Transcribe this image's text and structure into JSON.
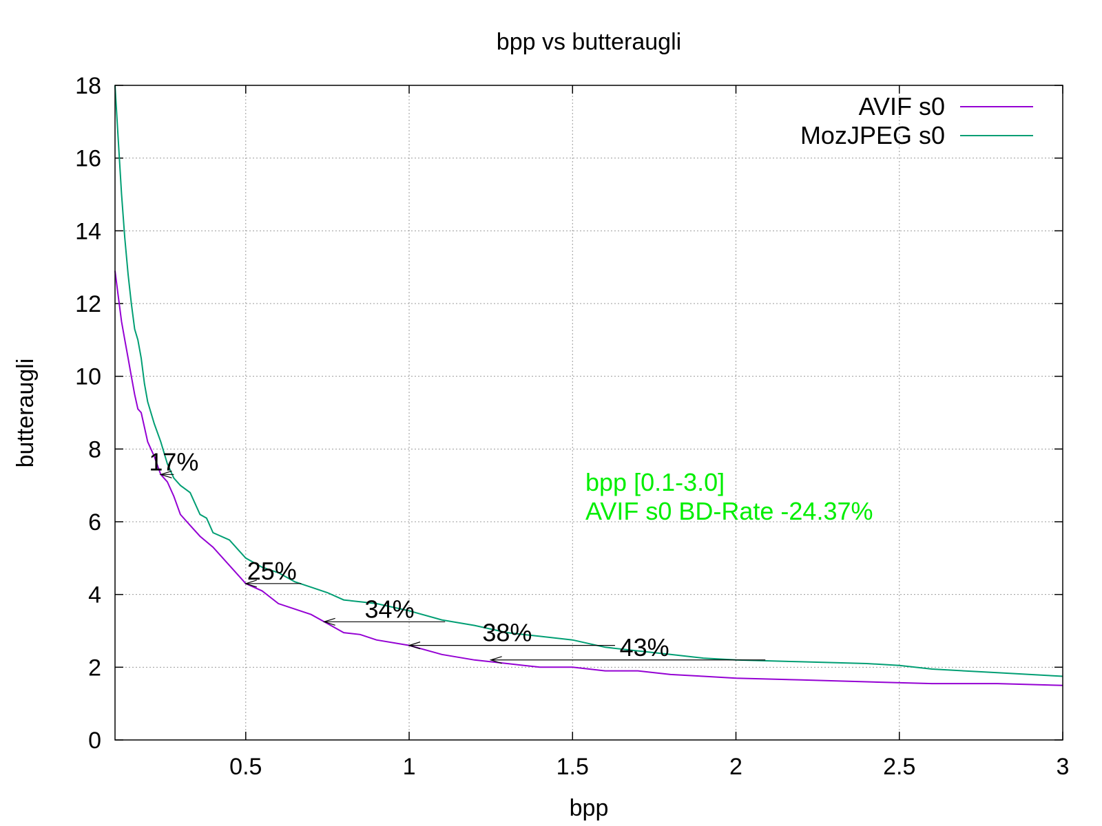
{
  "chart_data": {
    "type": "line",
    "title": "bpp vs butteraugli",
    "xlabel": "bpp",
    "ylabel": "butteraugli",
    "xlim": [
      0.1,
      3.0
    ],
    "ylim": [
      0,
      18
    ],
    "xticks": [
      0.5,
      1,
      1.5,
      2,
      2.5,
      3
    ],
    "xtick_labels": [
      "0.5",
      "1",
      "1.5",
      "2",
      "2.5",
      "3"
    ],
    "yticks": [
      0,
      2,
      4,
      6,
      8,
      10,
      12,
      14,
      16,
      18
    ],
    "ytick_labels": [
      "0",
      "2",
      "4",
      "6",
      "8",
      "10",
      "12",
      "14",
      "16",
      "18"
    ],
    "grid": true,
    "legend_position": "top-right",
    "series": [
      {
        "name": "AVIF s0",
        "color": "#9400d3",
        "points": [
          [
            0.1,
            12.9
          ],
          [
            0.11,
            12.2
          ],
          [
            0.12,
            11.5
          ],
          [
            0.13,
            11.0
          ],
          [
            0.14,
            10.5
          ],
          [
            0.15,
            10.0
          ],
          [
            0.16,
            9.5
          ],
          [
            0.17,
            9.1
          ],
          [
            0.18,
            9.0
          ],
          [
            0.19,
            8.6
          ],
          [
            0.2,
            8.2
          ],
          [
            0.22,
            7.8
          ],
          [
            0.24,
            7.3
          ],
          [
            0.26,
            7.1
          ],
          [
            0.28,
            6.7
          ],
          [
            0.3,
            6.2
          ],
          [
            0.33,
            5.9
          ],
          [
            0.36,
            5.6
          ],
          [
            0.4,
            5.3
          ],
          [
            0.45,
            4.8
          ],
          [
            0.5,
            4.3
          ],
          [
            0.55,
            4.1
          ],
          [
            0.6,
            3.75
          ],
          [
            0.65,
            3.6
          ],
          [
            0.7,
            3.45
          ],
          [
            0.75,
            3.2
          ],
          [
            0.8,
            2.95
          ],
          [
            0.85,
            2.9
          ],
          [
            0.9,
            2.75
          ],
          [
            1.0,
            2.6
          ],
          [
            1.1,
            2.35
          ],
          [
            1.2,
            2.2
          ],
          [
            1.3,
            2.1
          ],
          [
            1.4,
            2.0
          ],
          [
            1.5,
            2.0
          ],
          [
            1.6,
            1.9
          ],
          [
            1.7,
            1.9
          ],
          [
            1.8,
            1.8
          ],
          [
            1.9,
            1.75
          ],
          [
            2.0,
            1.7
          ],
          [
            2.2,
            1.65
          ],
          [
            2.4,
            1.6
          ],
          [
            2.6,
            1.55
          ],
          [
            2.8,
            1.55
          ],
          [
            3.0,
            1.5
          ]
        ]
      },
      {
        "name": "MozJPEG s0",
        "color": "#009e73",
        "points": [
          [
            0.1,
            18.0
          ],
          [
            0.11,
            16.5
          ],
          [
            0.12,
            15.0
          ],
          [
            0.13,
            13.8
          ],
          [
            0.14,
            12.8
          ],
          [
            0.15,
            12.0
          ],
          [
            0.16,
            11.3
          ],
          [
            0.17,
            11.0
          ],
          [
            0.18,
            10.5
          ],
          [
            0.19,
            9.8
          ],
          [
            0.2,
            9.3
          ],
          [
            0.22,
            8.7
          ],
          [
            0.24,
            8.2
          ],
          [
            0.26,
            7.6
          ],
          [
            0.28,
            7.2
          ],
          [
            0.3,
            7.0
          ],
          [
            0.33,
            6.8
          ],
          [
            0.36,
            6.2
          ],
          [
            0.38,
            6.1
          ],
          [
            0.4,
            5.7
          ],
          [
            0.45,
            5.5
          ],
          [
            0.48,
            5.2
          ],
          [
            0.5,
            5.0
          ],
          [
            0.55,
            4.75
          ],
          [
            0.6,
            4.6
          ],
          [
            0.65,
            4.35
          ],
          [
            0.7,
            4.2
          ],
          [
            0.75,
            4.05
          ],
          [
            0.8,
            3.85
          ],
          [
            0.85,
            3.8
          ],
          [
            0.9,
            3.75
          ],
          [
            1.0,
            3.55
          ],
          [
            1.1,
            3.3
          ],
          [
            1.2,
            3.15
          ],
          [
            1.3,
            2.95
          ],
          [
            1.4,
            2.85
          ],
          [
            1.5,
            2.75
          ],
          [
            1.6,
            2.55
          ],
          [
            1.7,
            2.45
          ],
          [
            1.8,
            2.35
          ],
          [
            1.9,
            2.25
          ],
          [
            2.0,
            2.2
          ],
          [
            2.2,
            2.15
          ],
          [
            2.4,
            2.1
          ],
          [
            2.5,
            2.05
          ],
          [
            2.6,
            1.95
          ],
          [
            2.8,
            1.85
          ],
          [
            3.0,
            1.75
          ]
        ]
      }
    ],
    "annotations": [
      {
        "text": "17%",
        "x": 0.28,
        "y": 7.3,
        "arrow_from": 0.28,
        "arrow_to": 0.24,
        "arrow_y": 7.3
      },
      {
        "text": "25%",
        "x": 0.58,
        "y": 4.3,
        "arrow_from": 0.67,
        "arrow_to": 0.5,
        "arrow_y": 4.3
      },
      {
        "text": "34%",
        "x": 0.94,
        "y": 3.25,
        "arrow_from": 1.11,
        "arrow_to": 0.74,
        "arrow_y": 3.25
      },
      {
        "text": "38%",
        "x": 1.3,
        "y": 2.6,
        "arrow_from": 1.63,
        "arrow_to": 1.0,
        "arrow_y": 2.6
      },
      {
        "text": "43%",
        "x": 1.72,
        "y": 2.2,
        "arrow_from": 2.09,
        "arrow_to": 1.25,
        "arrow_y": 2.2
      }
    ],
    "info_lines": [
      "bpp [0.1-3.0]",
      "AVIF s0 BD-Rate -24.37%"
    ],
    "info_color": "#00ee00"
  }
}
